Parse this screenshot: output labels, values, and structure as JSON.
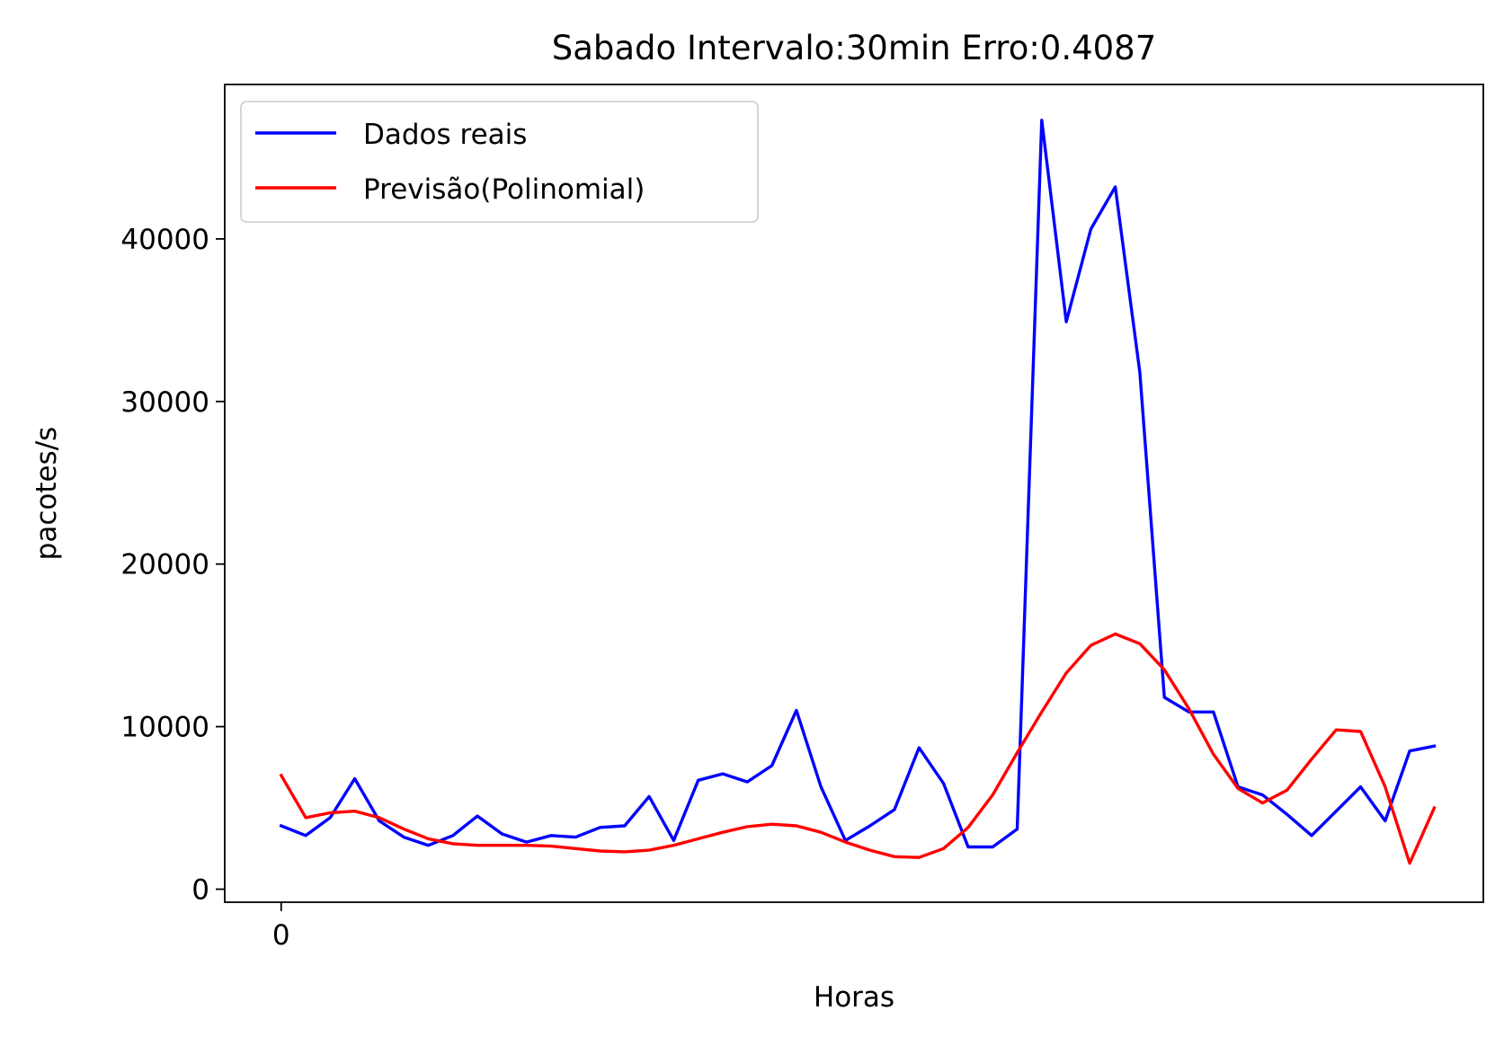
{
  "chart_data": {
    "type": "line",
    "title": "Sabado Intervalo:30min Erro:0.4087",
    "xlabel": "Horas",
    "ylabel": "pacotes/s",
    "xlim": [
      -2.3,
      49
    ],
    "ylim": [
      -800,
      49500
    ],
    "xticks": [
      0
    ],
    "xtick_labels": [
      "0"
    ],
    "yticks": [
      0,
      10000,
      20000,
      30000,
      40000
    ],
    "ytick_labels": [
      "0",
      "10000",
      "20000",
      "30000",
      "40000"
    ],
    "grid": false,
    "legend_position": "upper left",
    "x": [
      0,
      1,
      2,
      3,
      4,
      5,
      6,
      7,
      8,
      9,
      10,
      11,
      12,
      13,
      14,
      15,
      16,
      17,
      18,
      19,
      20,
      21,
      22,
      23,
      24,
      25,
      26,
      27,
      28,
      29,
      30,
      31,
      32,
      33,
      34,
      35,
      36,
      37,
      38,
      39,
      40,
      41,
      42,
      43,
      44,
      45,
      46,
      47
    ],
    "series": [
      {
        "name": "Dados reais",
        "color": "#0000ff",
        "values": [
          3900,
          3300,
          4400,
          6800,
          4200,
          3200,
          2700,
          3300,
          4500,
          3400,
          2900,
          3300,
          3200,
          3800,
          3900,
          5700,
          3000,
          6700,
          7100,
          6600,
          7600,
          11000,
          6300,
          3000,
          3900,
          4900,
          8700,
          6500,
          2600,
          2600,
          3700,
          47300,
          34900,
          40600,
          43200,
          31800,
          11800,
          10900,
          10900,
          6300,
          5800,
          4600,
          3300,
          4800,
          6300,
          4200,
          8500,
          8800
        ]
      },
      {
        "name": "Previsão(Polinomial)",
        "color": "#ff0000",
        "values": [
          7000,
          4400,
          4700,
          4800,
          4400,
          3700,
          3100,
          2800,
          2700,
          2700,
          2700,
          2650,
          2500,
          2350,
          2300,
          2400,
          2700,
          3100,
          3500,
          3850,
          4000,
          3900,
          3500,
          2900,
          2400,
          2000,
          1950,
          2500,
          3800,
          5800,
          8400,
          10900,
          13300,
          15000,
          15700,
          15100,
          13500,
          11100,
          8300,
          6200,
          5300,
          6100,
          8000,
          9800,
          9700,
          6300,
          1600,
          5000
        ]
      }
    ]
  }
}
